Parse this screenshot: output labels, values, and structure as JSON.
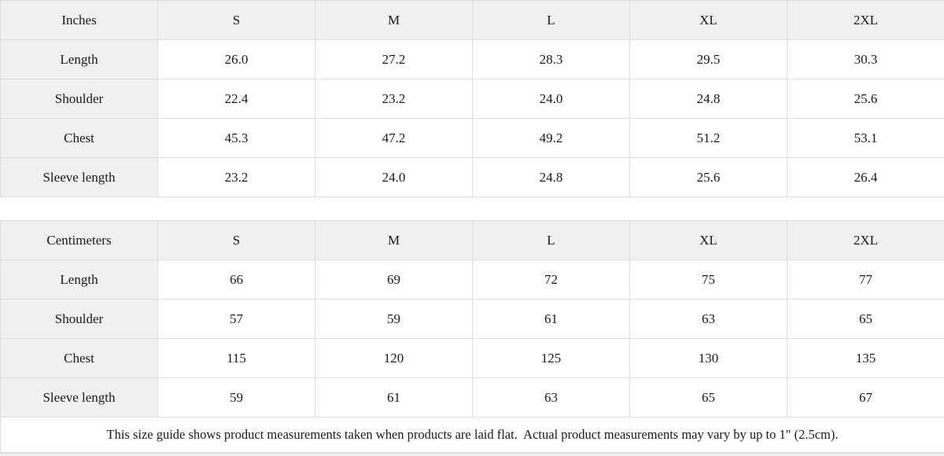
{
  "colors": {
    "header_bg": "#f0f0f0",
    "border": "#dddddd",
    "text": "#1a1a1a",
    "cell_bg": "#ffffff"
  },
  "inches": {
    "unit_label": "Inches",
    "columns": [
      "S",
      "M",
      "L",
      "XL",
      "2XL"
    ],
    "rows": [
      {
        "label": "Length",
        "values": [
          "26.0",
          "27.2",
          "28.3",
          "29.5",
          "30.3"
        ]
      },
      {
        "label": "Shoulder",
        "values": [
          "22.4",
          "23.2",
          "24.0",
          "24.8",
          "25.6"
        ]
      },
      {
        "label": "Chest",
        "values": [
          "45.3",
          "47.2",
          "49.2",
          "51.2",
          "53.1"
        ]
      },
      {
        "label": "Sleeve length",
        "values": [
          "23.2",
          "24.0",
          "24.8",
          "25.6",
          "26.4"
        ]
      }
    ]
  },
  "centimeters": {
    "unit_label": "Centimeters",
    "columns": [
      "S",
      "M",
      "L",
      "XL",
      "2XL"
    ],
    "rows": [
      {
        "label": "Length",
        "values": [
          "66",
          "69",
          "72",
          "75",
          "77"
        ]
      },
      {
        "label": "Shoulder",
        "values": [
          "57",
          "59",
          "61",
          "63",
          "65"
        ]
      },
      {
        "label": "Chest",
        "values": [
          "115",
          "120",
          "125",
          "130",
          "135"
        ]
      },
      {
        "label": "Sleeve length",
        "values": [
          "59",
          "61",
          "63",
          "65",
          "67"
        ]
      }
    ]
  },
  "footer": {
    "note": "This size guide shows product measurements taken when products are laid flat.  Actual product measurements may vary by up to 1\" (2.5cm)."
  }
}
